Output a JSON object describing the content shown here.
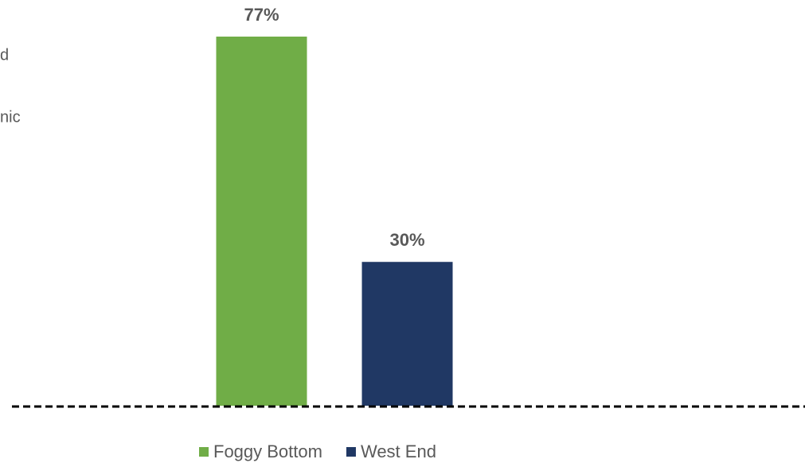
{
  "chart_data": {
    "type": "bar",
    "annotations": [
      "d",
      "nic"
    ],
    "series": [
      {
        "name": "Foggy Bottom",
        "color": "#70ad47",
        "values": [
          77
        ],
        "value_labels": [
          "77%"
        ]
      },
      {
        "name": "West End",
        "color": "#203864",
        "values": [
          30
        ],
        "value_labels": [
          "30%"
        ]
      }
    ]
  }
}
